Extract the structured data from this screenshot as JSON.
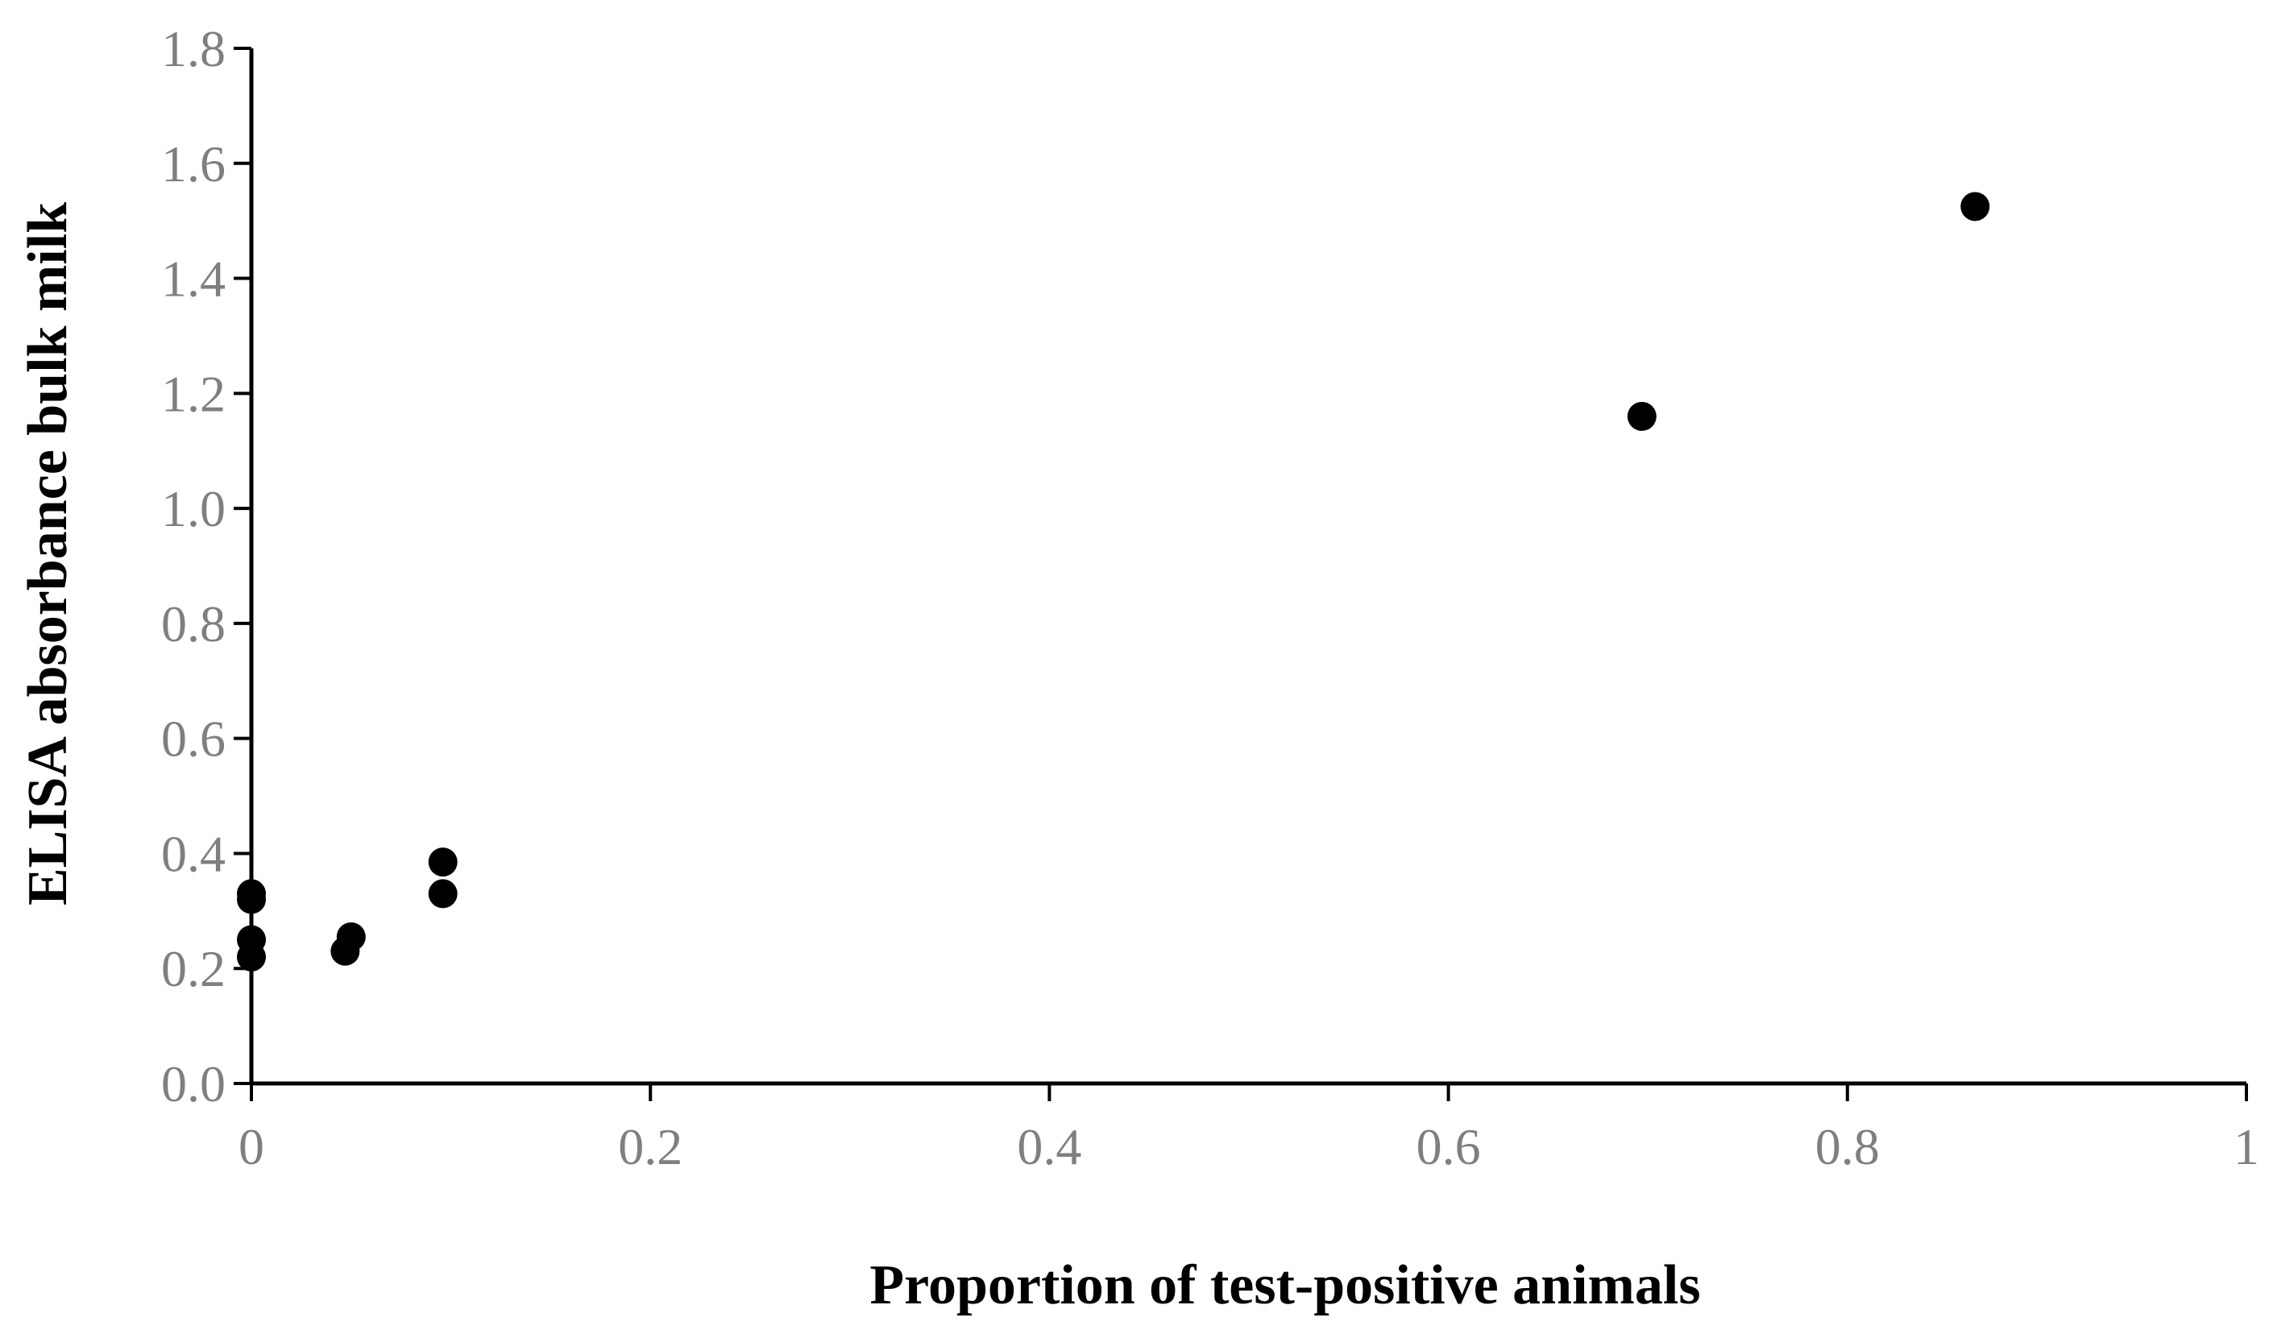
{
  "chart_data": {
    "type": "scatter",
    "title": "",
    "xlabel": "Proportion of test-positive animals",
    "ylabel": "ELISA absorbance bulk milk",
    "xlim": [
      0,
      1
    ],
    "ylim": [
      0,
      1.8
    ],
    "x_ticks": [
      0,
      0.2,
      0.4,
      0.6,
      0.8,
      1
    ],
    "x_tick_labels": [
      "0",
      "0.2",
      "0.4",
      "0.6",
      "0.8",
      "1"
    ],
    "y_ticks": [
      0,
      0.2,
      0.4,
      0.6,
      0.8,
      1.0,
      1.2,
      1.4,
      1.6,
      1.8
    ],
    "y_tick_labels": [
      "0.0",
      "0.2",
      "0.4",
      "0.6",
      "0.8",
      "1.0",
      "1.2",
      "1.4",
      "1.6",
      "1.8"
    ],
    "grid": false,
    "legend": "none",
    "marker_color": "#000000",
    "tick_label_color": "#7f7f7f",
    "series": [
      {
        "points": [
          {
            "x": 0,
            "y": 0.33
          },
          {
            "x": 0,
            "y": 0.32
          },
          {
            "x": 0,
            "y": 0.25
          },
          {
            "x": 0,
            "y": 0.22
          },
          {
            "x": 0.047,
            "y": 0.23
          },
          {
            "x": 0.05,
            "y": 0.255
          },
          {
            "x": 0.096,
            "y": 0.385
          },
          {
            "x": 0.096,
            "y": 0.33
          },
          {
            "x": 0.697,
            "y": 1.16
          },
          {
            "x": 0.864,
            "y": 1.525
          }
        ]
      }
    ]
  }
}
